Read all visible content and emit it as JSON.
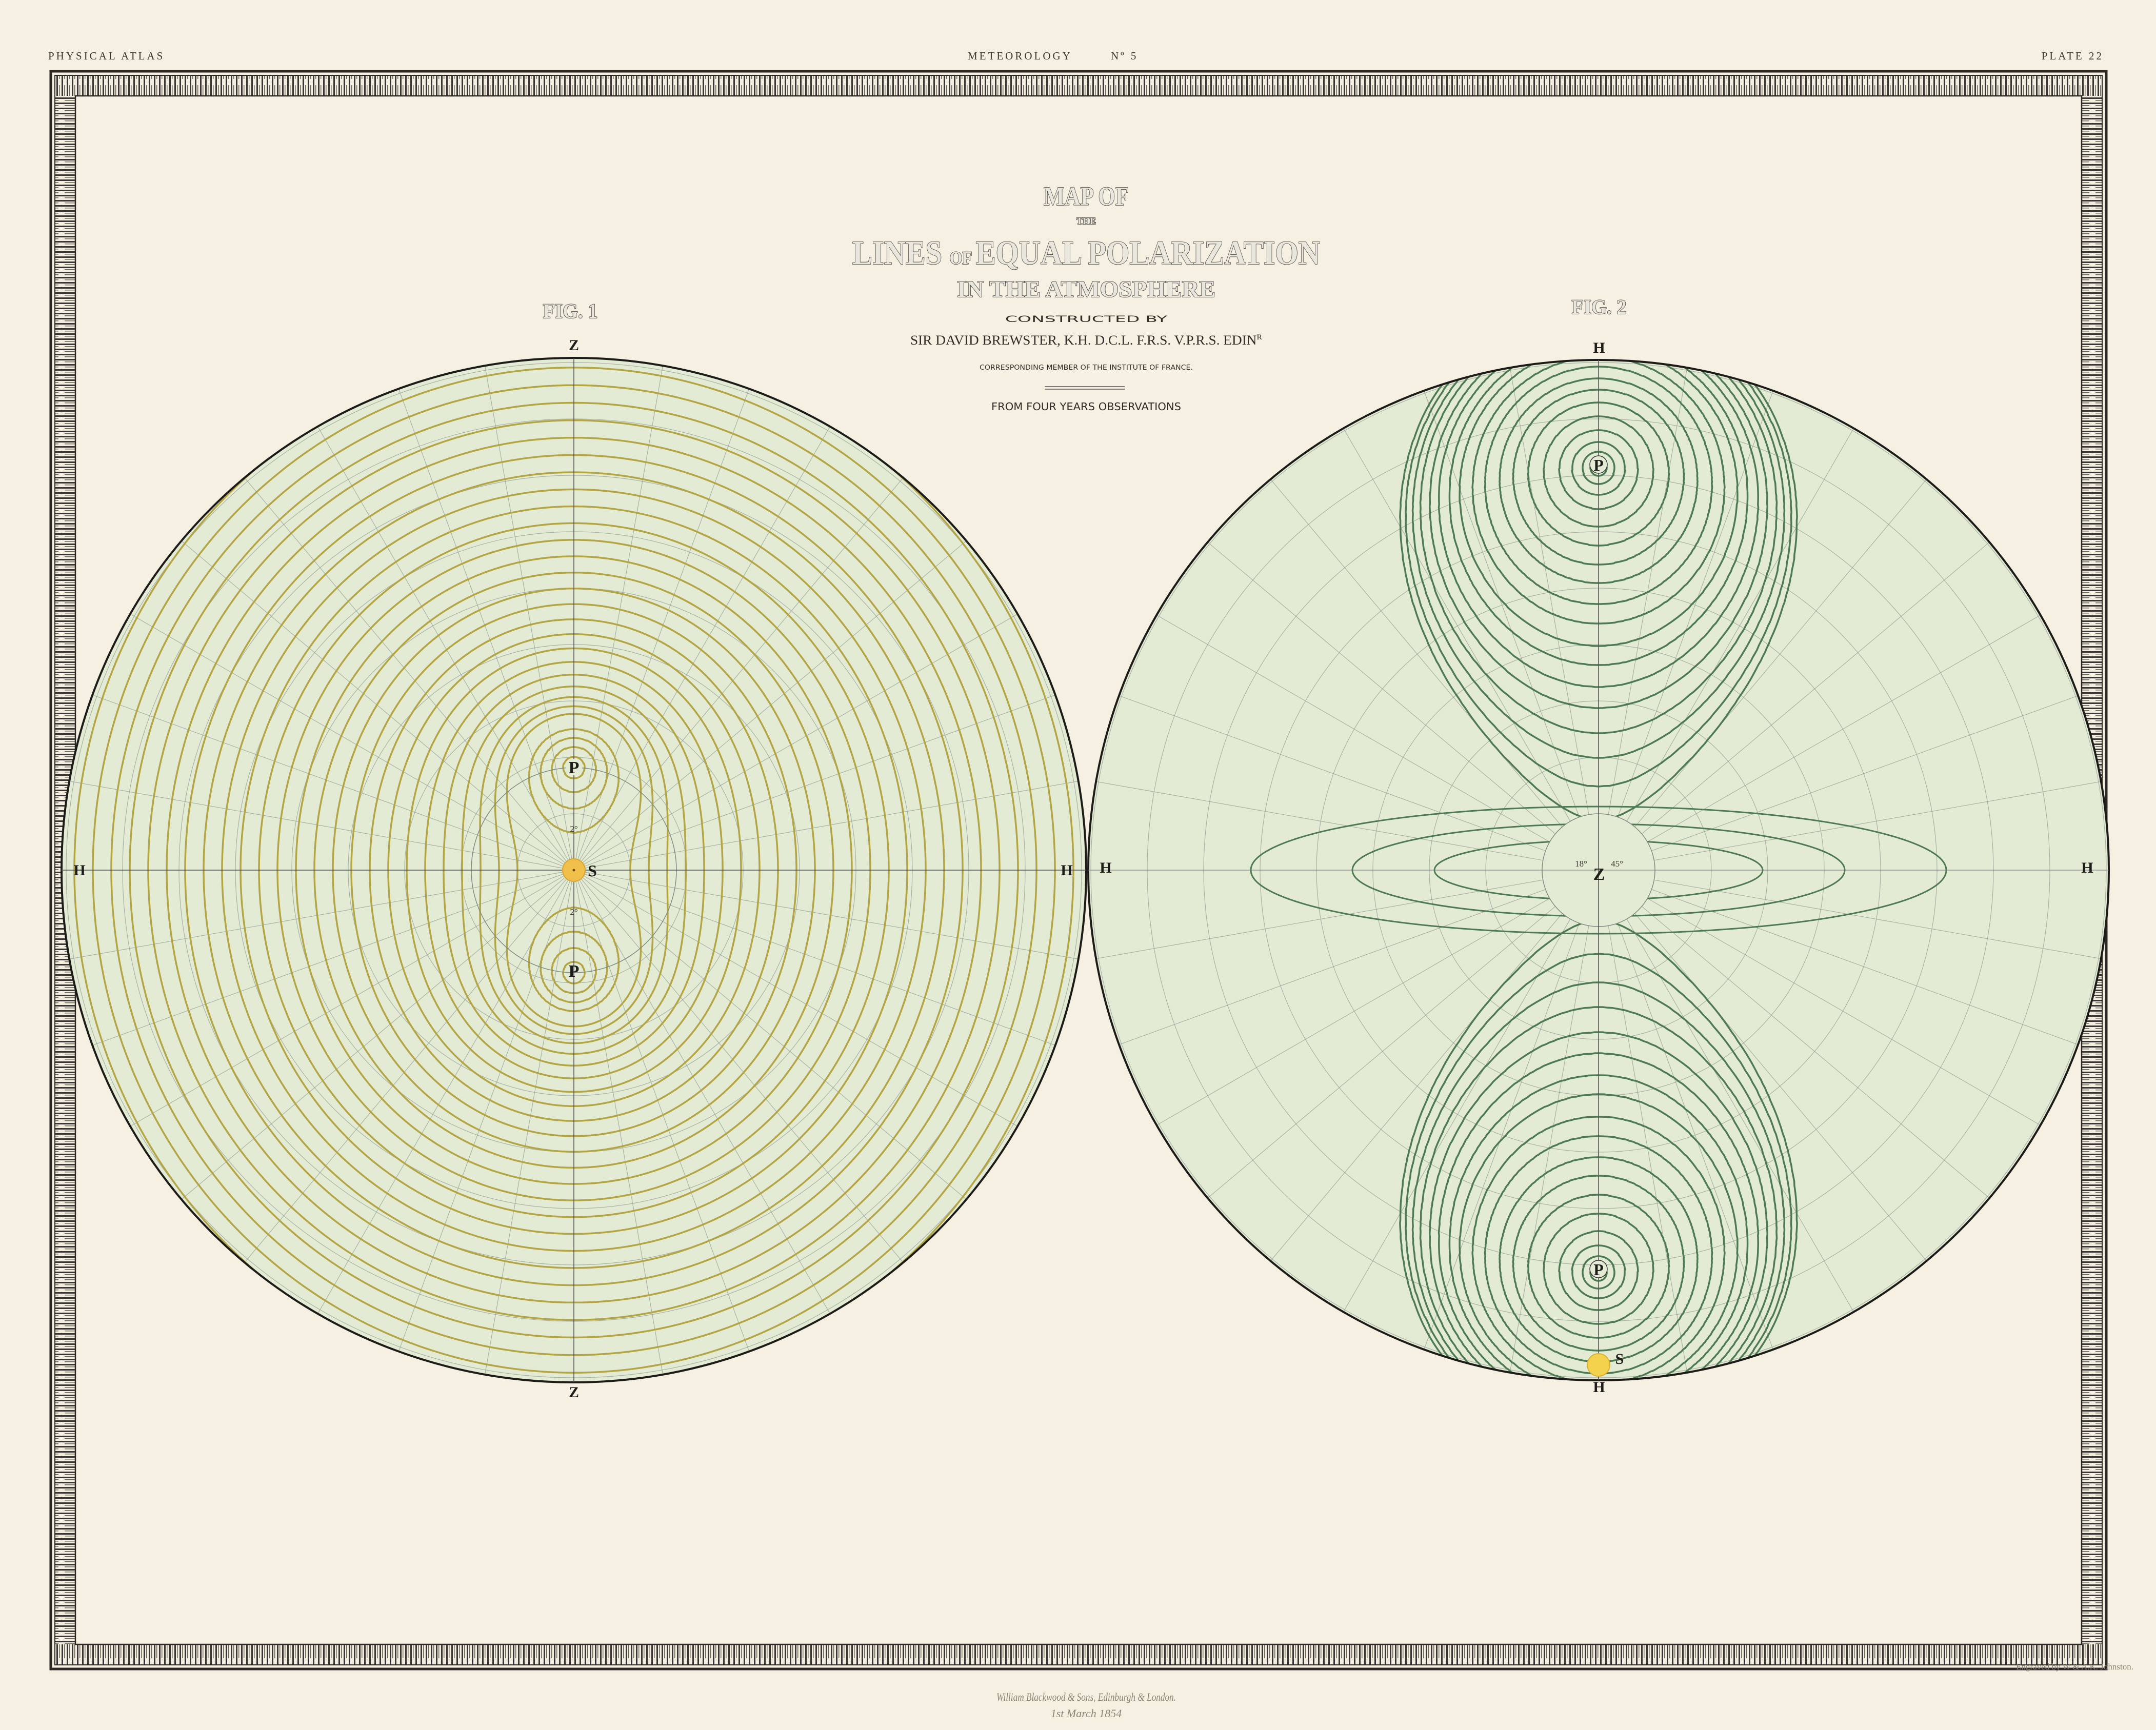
{
  "header": {
    "left": "PHYSICAL ATLAS",
    "center": "METEOROLOGY",
    "number": "Nº 5",
    "right": "PLATE 22"
  },
  "title": {
    "line1": "MAP OF",
    "line2": "THE",
    "line3a": "LINES ",
    "line3_of": "OF ",
    "line3b": "EQUAL POLARIZATION",
    "line4": "IN THE ATMOSPHERE",
    "constructed": "CONSTRUCTED BY",
    "author": "SIR DAVID BREWSTER, K.H. D.C.L. F.R.S. V.P.R.S. EDIN",
    "author_sup": "R",
    "member": "CORRESPONDING MEMBER OF THE INSTITUTE OF FRANCE.",
    "source": "FROM FOUR YEARS OBSERVATIONS"
  },
  "fig1": {
    "label": "FIG. 1",
    "top": "Z",
    "bottom": "Z",
    "left": "H",
    "right": "H",
    "pole_upper": "P",
    "pole_lower": "P",
    "sun": "S",
    "center_degree_upper": "2°",
    "center_degree_lower": "2°",
    "contour_color": "#b3a444"
  },
  "fig2": {
    "label": "FIG. 2",
    "top": "H",
    "bottom": "H",
    "left": "H",
    "right": "H",
    "zenith": "Z",
    "pole_upper": "P",
    "pole_lower": "P",
    "sun": "S",
    "zenith_degree_left": "18°",
    "zenith_degree_right": "45°",
    "contour_color": "#4d7a52"
  },
  "colors": {
    "paper": "#f6f0e2",
    "disc_fill": "#e4ebd5",
    "grid": "#8d9a90",
    "sun": "#f1c04a",
    "frame": "#2a2724"
  },
  "footer": {
    "publisher": "William Blackwood & Sons, Edinburgh & London.",
    "date": "1st March 1854",
    "engraver": "Engraved by W & A.K. Johnston."
  }
}
